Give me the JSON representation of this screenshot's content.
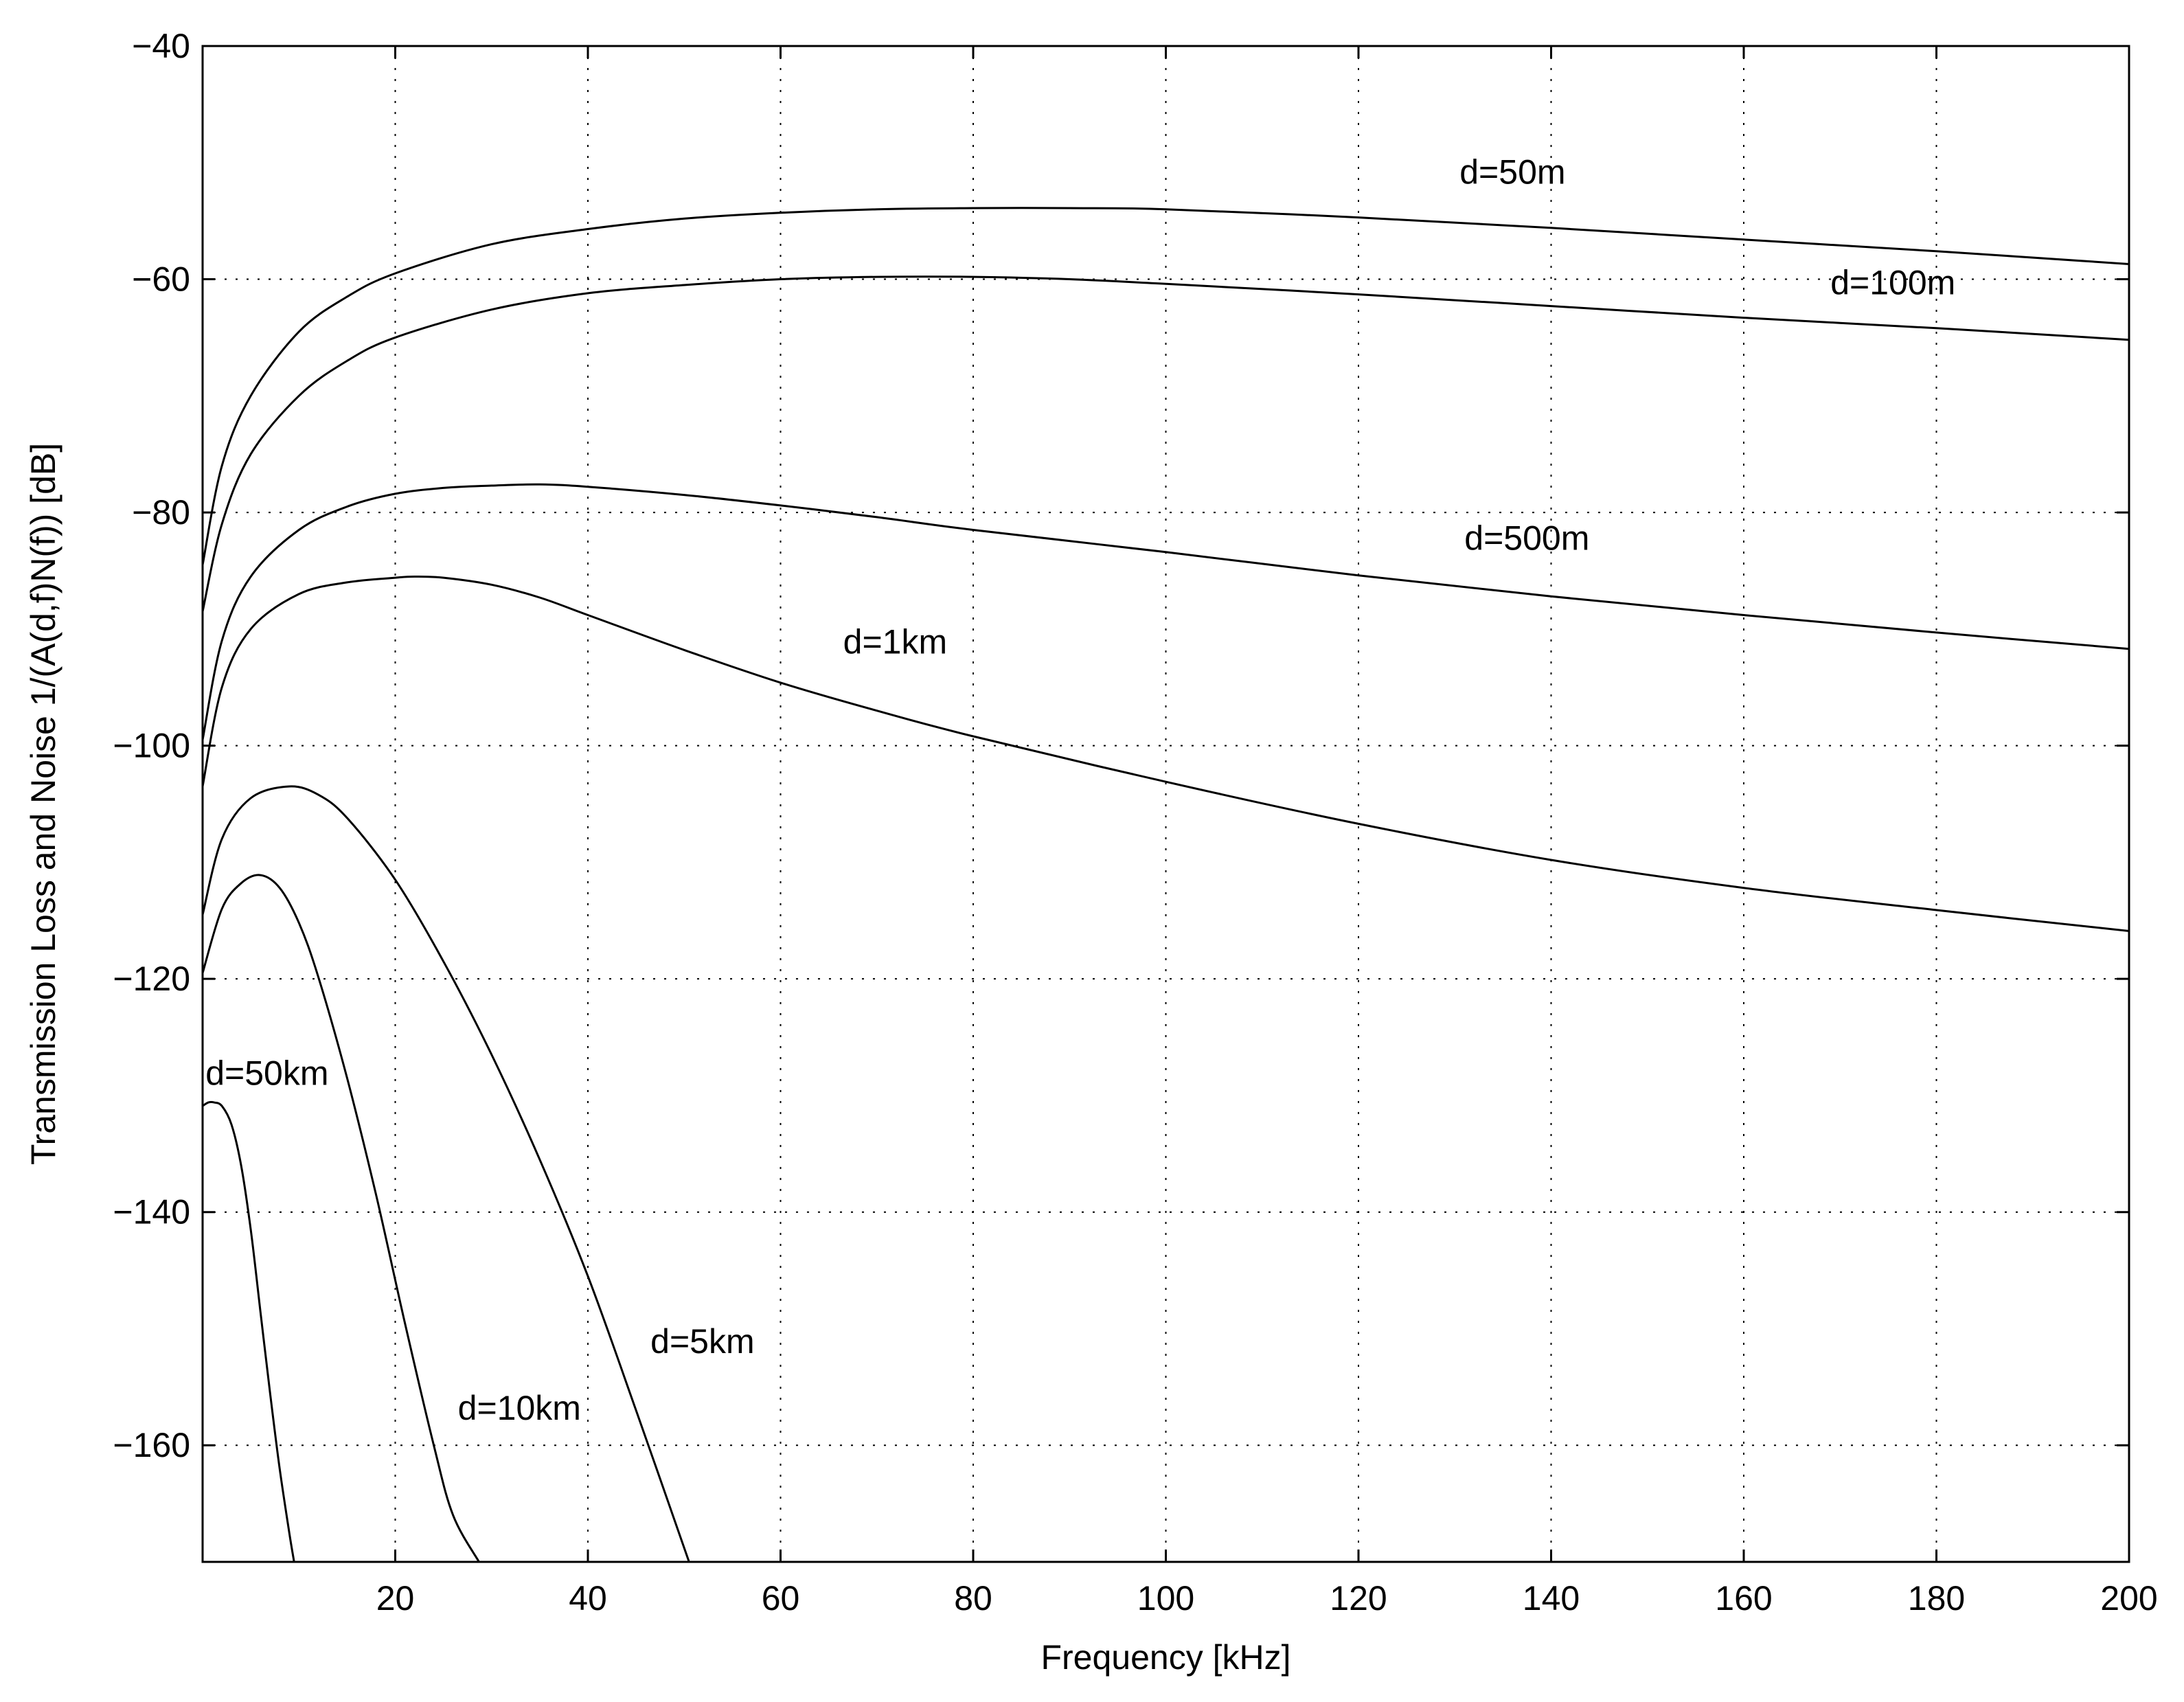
{
  "chart_data": {
    "type": "line",
    "title": "",
    "xlabel": "Frequency [kHz]",
    "ylabel": "Transmission Loss and Noise 1/(A(d,f)N(f)) [dB]",
    "xlim": [
      0,
      200
    ],
    "ylim": [
      -170,
      -40
    ],
    "xticks": [
      20,
      40,
      60,
      80,
      100,
      120,
      140,
      160,
      180,
      200
    ],
    "xtick_labels": [
      "20",
      "40",
      "60",
      "80",
      "100",
      "120",
      "140",
      "160",
      "180",
      "200"
    ],
    "yticks": [
      -40,
      -60,
      -80,
      -100,
      -120,
      -140,
      -160
    ],
    "ytick_labels": [
      "−40",
      "−60",
      "−80",
      "−100",
      "−120",
      "−140",
      "−160"
    ],
    "grid": true,
    "line_color": "#000000",
    "series": [
      {
        "name": "d=50m",
        "x": [
          0,
          2,
          5,
          10,
          15,
          20,
          30,
          40,
          50,
          60,
          70,
          80,
          90,
          100,
          120,
          140,
          160,
          180,
          200
        ],
        "y": [
          -84.5,
          -76,
          -70,
          -64.5,
          -61.5,
          -59.5,
          -57,
          -55.7,
          -54.8,
          -54.3,
          -54.0,
          -53.9,
          -53.9,
          -54.0,
          -54.7,
          -55.6,
          -56.6,
          -57.6,
          -58.7
        ]
      },
      {
        "name": "d=100m",
        "x": [
          0,
          2,
          5,
          10,
          15,
          20,
          30,
          40,
          50,
          60,
          70,
          80,
          90,
          100,
          120,
          140,
          160,
          180,
          200
        ],
        "y": [
          -88.5,
          -81,
          -75,
          -70,
          -67,
          -65,
          -62.6,
          -61.2,
          -60.5,
          -60.0,
          -59.8,
          -59.8,
          -60.0,
          -60.4,
          -61.3,
          -62.3,
          -63.3,
          -64.2,
          -65.2
        ]
      },
      {
        "name": "d=500m",
        "x": [
          0,
          2,
          5,
          10,
          15,
          20,
          25,
          30,
          35,
          40,
          50,
          60,
          70,
          80,
          100,
          120,
          140,
          160,
          180,
          200
        ],
        "y": [
          -99.5,
          -91,
          -85.5,
          -81.5,
          -79.5,
          -78.4,
          -77.9,
          -77.7,
          -77.6,
          -77.8,
          -78.5,
          -79.4,
          -80.4,
          -81.5,
          -83.4,
          -85.4,
          -87.2,
          -88.8,
          -90.3,
          -91.7
        ]
      },
      {
        "name": "d=1km",
        "x": [
          0,
          2,
          5,
          10,
          15,
          20,
          22,
          25,
          30,
          35,
          40,
          50,
          60,
          70,
          80,
          100,
          120,
          140,
          160,
          180,
          200
        ],
        "y": [
          -103.5,
          -95,
          -90,
          -87,
          -86,
          -85.6,
          -85.5,
          -85.6,
          -86.2,
          -87.3,
          -88.8,
          -91.8,
          -94.6,
          -97.0,
          -99.2,
          -103.1,
          -106.7,
          -109.8,
          -112.2,
          -114.1,
          -115.9
        ]
      },
      {
        "name": "d=5km",
        "x": [
          0,
          2,
          5,
          9,
          12,
          15,
          20,
          25,
          30,
          35,
          40,
          45,
          50.5
        ],
        "y": [
          -114.5,
          -108,
          -104.5,
          -103.5,
          -104.2,
          -106.2,
          -111.5,
          -118.5,
          -126.5,
          -135.5,
          -145.5,
          -157,
          -170
        ]
      },
      {
        "name": "d=10km",
        "x": [
          0,
          2,
          4,
          6,
          8,
          10,
          12,
          15,
          18,
          21,
          24,
          26,
          28.7
        ],
        "y": [
          -119.5,
          -114,
          -111.8,
          -111.1,
          -112.2,
          -115.2,
          -119.8,
          -128.5,
          -138.5,
          -149.5,
          -160,
          -166,
          -170
        ]
      },
      {
        "name": "d=50km",
        "x": [
          0,
          0.6,
          1.2,
          2,
          3,
          4,
          5,
          6,
          7,
          8,
          9,
          9.5
        ],
        "y": [
          -130.9,
          -130.6,
          -130.6,
          -130.9,
          -132.5,
          -136,
          -141.5,
          -148.5,
          -155.5,
          -162,
          -167.5,
          -170
        ]
      }
    ],
    "annotations": [
      {
        "text": "d=50m",
        "x": 130.5,
        "y": -51.8
      },
      {
        "text": "d=100m",
        "x": 169,
        "y": -61.3
      },
      {
        "text": "d=500m",
        "x": 131,
        "y": -83.2
      },
      {
        "text": "d=1km",
        "x": 66.5,
        "y": -92.1
      },
      {
        "text": "d=5km",
        "x": 46.5,
        "y": -152.1
      },
      {
        "text": "d=10km",
        "x": 26.5,
        "y": -157.8
      },
      {
        "text": "d=50km",
        "x": 0.3,
        "y": -129.1
      }
    ]
  }
}
